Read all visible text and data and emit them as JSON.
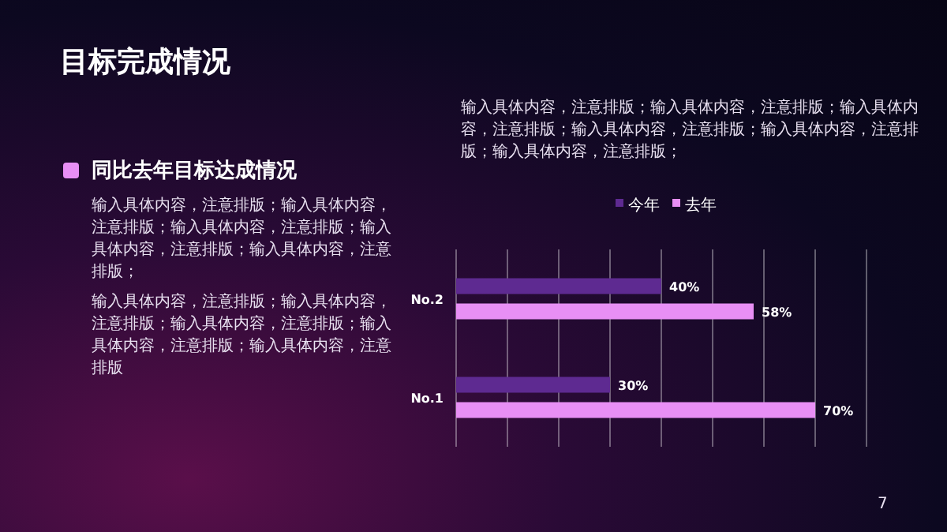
{
  "chart_data": {
    "type": "bar",
    "orientation": "horizontal",
    "title": "目标完成情况",
    "subtitle": "同比去年目标达成情况",
    "annotations": [
      "输入具体内容，注意排版；输入具体内容，注意排版；输入具体内容，注意排版；输入具体内容，注意排版；输入具体内容，注意排版；输入具体内容，注意排版；",
      "输入具体内容，注意排版；输入具体内容，注意排版；输入具体内容，注意排版；输入具体内容，注意排版；输入具体内容，注意排版；",
      "输入具体内容，注意排版；输入具体内容，注意排版；输入具体内容，注意排版；输入具体内容，注意排版；输入具体内容，注意排版",
      "7"
    ],
    "categories": [
      "No.2",
      "No.1"
    ],
    "series": [
      {
        "name": "今年",
        "color": "#5e2a91",
        "values": [
          40,
          30
        ],
        "value_labels": [
          "40%",
          "30%"
        ]
      },
      {
        "name": "去年",
        "color": "#e88ff5",
        "values": [
          58,
          70
        ],
        "value_labels": [
          "58%",
          "70%"
        ]
      }
    ],
    "xlim": [
      0,
      80
    ],
    "xticks": [
      {
        "value": 0,
        "label": null
      },
      {
        "value": 10,
        "label": null
      },
      {
        "value": 20,
        "label": null
      },
      {
        "value": 30,
        "label": null
      },
      {
        "value": 40,
        "label": null
      },
      {
        "value": 50,
        "label": null
      },
      {
        "value": 60,
        "label": null
      },
      {
        "value": 70,
        "label": null
      },
      {
        "value": 80,
        "label": null
      }
    ],
    "grid": "x",
    "legend": "top",
    "tick_labels": "y"
  }
}
